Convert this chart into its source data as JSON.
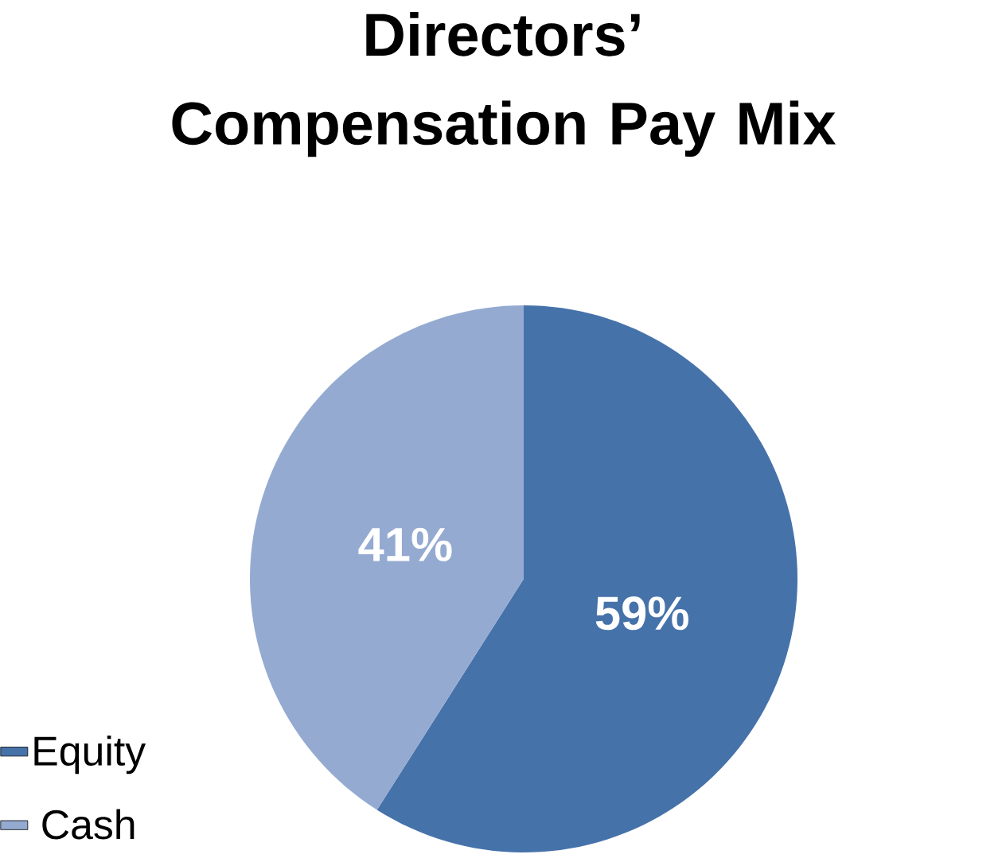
{
  "chart_data": {
    "type": "pie",
    "title": "Directors’ Compensation Pay Mix",
    "categories": [
      "Equity",
      "Cash"
    ],
    "values": [
      59,
      41
    ],
    "colors": [
      "#4672aa",
      "#94aad1"
    ],
    "value_labels": [
      "59%",
      "41%"
    ],
    "legend": "bottom left"
  }
}
